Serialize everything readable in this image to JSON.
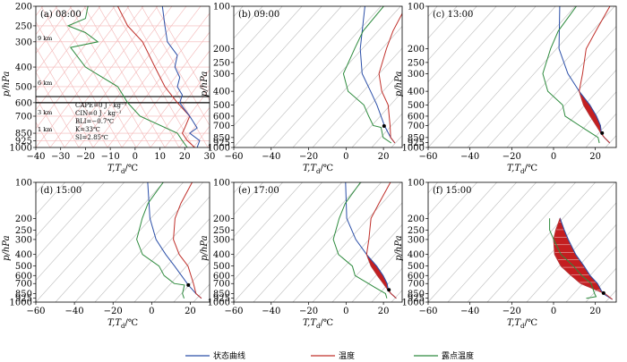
{
  "colors": {
    "parcel": "#2b4fa8",
    "temperature": "#c0302b",
    "dewpoint": "#2e8b3e",
    "cape": "#c41e20",
    "isotherm": "#bdbdbd",
    "skew_grid": "#f3b6b6"
  },
  "legend": [
    {
      "key": "parcel",
      "label": "状态曲线"
    },
    {
      "key": "temperature",
      "label": "温度"
    },
    {
      "key": "dewpoint",
      "label": "露点温度"
    }
  ],
  "chart_data": [
    {
      "type": "line",
      "panel": "(a)",
      "time": "08:00",
      "ylabel": "p/hPa",
      "xlabel_main": "T,T",
      "xlabel_sub": "d",
      "xlabel_unit": "/℃",
      "xlim": [
        -40,
        30
      ],
      "ylim": [
        1000,
        200
      ],
      "xticks": [
        -40,
        -30,
        -20,
        -10,
        0,
        10,
        20,
        30
      ],
      "yticks": [
        200,
        250,
        300,
        400,
        500,
        600,
        700,
        850,
        925,
        1000
      ],
      "height_labels": [
        {
          "p": 300,
          "text": "9 km"
        },
        {
          "p": 500,
          "text": "6 km"
        },
        {
          "p": 700,
          "text": "3 km"
        },
        {
          "p": 850,
          "text": "1 km"
        }
      ],
      "indices": [
        "CAPE=0 J · kg⁻¹",
        "CIN=0 J · kg⁻¹",
        "BLI=−0.7℃",
        "K=33℃",
        "SI=2.85℃"
      ],
      "series": [
        {
          "name": "温度",
          "key": "temperature",
          "points": [
            [
              1000,
              24
            ],
            [
              925,
              21
            ],
            [
              850,
              19
            ],
            [
              800,
              20
            ],
            [
              700,
              22
            ],
            [
              600,
              17
            ],
            [
              500,
              12
            ],
            [
              400,
              8
            ],
            [
              300,
              3
            ],
            [
              250,
              -3
            ],
            [
              200,
              -7
            ]
          ]
        },
        {
          "name": "露点温度",
          "key": "dewpoint",
          "points": [
            [
              1000,
              21
            ],
            [
              925,
              19
            ],
            [
              850,
              17
            ],
            [
              700,
              2
            ],
            [
              600,
              -3
            ],
            [
              500,
              -7
            ],
            [
              400,
              -20
            ],
            [
              320,
              -26
            ],
            [
              300,
              -15
            ],
            [
              270,
              -20
            ],
            [
              250,
              -27
            ],
            [
              230,
              -20
            ],
            [
              200,
              -19
            ]
          ]
        },
        {
          "name": "wind_profile",
          "key": "parcel",
          "points": [
            [
              1000,
              25
            ],
            [
              925,
              26
            ],
            [
              850,
              22
            ],
            [
              800,
              25
            ],
            [
              700,
              22
            ],
            [
              650,
              20
            ],
            [
              600,
              18
            ],
            [
              550,
              19
            ],
            [
              500,
              17
            ],
            [
              450,
              18
            ],
            [
              400,
              16
            ],
            [
              350,
              17
            ],
            [
              300,
              13
            ],
            [
              250,
              12
            ],
            [
              200,
              11
            ]
          ]
        }
      ]
    },
    {
      "type": "line",
      "panel": "(b)",
      "time": "09:00",
      "ylabel": "p/hPa",
      "xlabel_main": "T,T",
      "xlabel_sub": "d",
      "xlabel_unit": "/℃",
      "xlim": [
        -60,
        30
      ],
      "ylim": [
        1000,
        100
      ],
      "xticks": [
        -60,
        -40,
        -20,
        0,
        20
      ],
      "yticks": [
        100,
        200,
        250,
        300,
        400,
        500,
        600,
        700,
        850,
        925,
        1000
      ],
      "lcl": {
        "p": 705,
        "t": 10
      },
      "series": [
        {
          "name": "状态曲线",
          "key": "parcel",
          "points": [
            [
              930,
              24
            ],
            [
              850,
              19
            ],
            [
              700,
              10
            ],
            [
              500,
              -4
            ],
            [
              400,
              -14
            ],
            [
              300,
              -27
            ],
            [
              200,
              -40
            ],
            [
              100,
              -58
            ]
          ]
        },
        {
          "name": "温度",
          "key": "temperature",
          "points": [
            [
              930,
              24
            ],
            [
              850,
              19
            ],
            [
              700,
              13
            ],
            [
              500,
              2
            ],
            [
              400,
              -8
            ],
            [
              300,
              -18
            ],
            [
              200,
              -26
            ],
            [
              150,
              -31
            ],
            [
              100,
              -36
            ]
          ]
        },
        {
          "name": "露点温度",
          "key": "dewpoint",
          "points": [
            [
              930,
              22
            ],
            [
              850,
              15
            ],
            [
              720,
              9
            ],
            [
              700,
              4
            ],
            [
              600,
              -3
            ],
            [
              500,
              -11
            ],
            [
              400,
              -26
            ],
            [
              300,
              -37
            ],
            [
              200,
              -43
            ],
            [
              150,
              -47
            ],
            [
              100,
              -48
            ]
          ]
        }
      ]
    },
    {
      "type": "line",
      "panel": "(c)",
      "time": "13:00",
      "ylabel": "p/hPa",
      "xlabel_main": "T,T",
      "xlabel_sub": "d",
      "xlabel_unit": "/℃",
      "xlim": [
        -60,
        30
      ],
      "ylim": [
        1000,
        100
      ],
      "xticks": [
        -60,
        -40,
        -20,
        0,
        20
      ],
      "yticks": [
        100,
        200,
        250,
        300,
        400,
        500,
        600,
        700,
        850,
        925,
        1000
      ],
      "lcl": {
        "p": 790,
        "t": 17
      },
      "cape": {
        "p_top": 420,
        "p_bottom": 800
      },
      "series": [
        {
          "name": "状态曲线",
          "key": "parcel",
          "points": [
            [
              930,
              25
            ],
            [
              850,
              20
            ],
            [
              800,
              17
            ],
            [
              700,
              13
            ],
            [
              600,
              7
            ],
            [
              500,
              -1
            ],
            [
              400,
              -12
            ],
            [
              300,
              -25
            ],
            [
              200,
              -40
            ],
            [
              100,
              -58
            ]
          ]
        },
        {
          "name": "温度",
          "key": "temperature",
          "points": [
            [
              930,
              25
            ],
            [
              850,
              20
            ],
            [
              800,
              17
            ],
            [
              700,
              11
            ],
            [
              600,
              4
            ],
            [
              500,
              -4
            ],
            [
              400,
              -12
            ],
            [
              300,
              -18
            ],
            [
              200,
              -27
            ],
            [
              150,
              -30
            ],
            [
              100,
              -34
            ]
          ]
        },
        {
          "name": "露点温度",
          "key": "dewpoint",
          "points": [
            [
              930,
              20
            ],
            [
              850,
              17
            ],
            [
              750,
              8
            ],
            [
              700,
              3
            ],
            [
              600,
              -8
            ],
            [
              500,
              -14
            ],
            [
              400,
              -27
            ],
            [
              300,
              -37
            ],
            [
              200,
              -44
            ],
            [
              150,
              -48
            ],
            [
              100,
              -50
            ]
          ]
        }
      ]
    },
    {
      "type": "line",
      "panel": "(d)",
      "time": "15:00",
      "ylabel": "p/hPa",
      "xlabel_main": "T,T",
      "xlabel_sub": "d",
      "xlabel_unit": "/℃",
      "xlim": [
        -60,
        30
      ],
      "ylim": [
        1000,
        100
      ],
      "xticks": [
        -60,
        -40,
        -20,
        0,
        20
      ],
      "yticks": [
        100,
        200,
        250,
        300,
        400,
        500,
        600,
        700,
        850,
        925,
        1000
      ],
      "lcl": {
        "p": 720,
        "t": 11
      },
      "series": [
        {
          "name": "状态曲线",
          "key": "parcel",
          "points": [
            [
              930,
              24
            ],
            [
              850,
              19
            ],
            [
              720,
              11
            ],
            [
              600,
              3
            ],
            [
              500,
              -5
            ],
            [
              400,
              -15
            ],
            [
              300,
              -27
            ],
            [
              200,
              -40
            ],
            [
              100,
              -58
            ]
          ]
        },
        {
          "name": "温度",
          "key": "temperature",
          "points": [
            [
              930,
              24
            ],
            [
              850,
              19
            ],
            [
              700,
              13
            ],
            [
              500,
              2
            ],
            [
              400,
              -8
            ],
            [
              300,
              -18
            ],
            [
              200,
              -27
            ],
            [
              150,
              -31
            ],
            [
              100,
              -35
            ]
          ]
        },
        {
          "name": "露点温度",
          "key": "dewpoint",
          "points": [
            [
              930,
              15
            ],
            [
              850,
              12
            ],
            [
              720,
              9
            ],
            [
              700,
              3
            ],
            [
              600,
              -6
            ],
            [
              500,
              -13
            ],
            [
              400,
              -27
            ],
            [
              300,
              -37
            ],
            [
              200,
              -44
            ],
            [
              150,
              -48
            ],
            [
              100,
              -50
            ]
          ]
        }
      ]
    },
    {
      "type": "line",
      "panel": "(e)",
      "time": "17:00",
      "ylabel": "p/hPa",
      "xlabel_main": "T,T",
      "xlabel_sub": "d",
      "xlabel_unit": "/℃",
      "xlim": [
        -60,
        30
      ],
      "ylim": [
        1000,
        100
      ],
      "xticks": [
        -60,
        -40,
        -20,
        0,
        20
      ],
      "yticks": [
        100,
        200,
        250,
        300,
        400,
        500,
        600,
        700,
        850,
        925,
        1000
      ],
      "lcl": {
        "p": 790,
        "t": 17
      },
      "cape": {
        "p_top": 420,
        "p_bottom": 800
      },
      "series": [
        {
          "name": "状态曲线",
          "key": "parcel",
          "points": [
            [
              930,
              25
            ],
            [
              850,
              20
            ],
            [
              800,
              17
            ],
            [
              700,
              13
            ],
            [
              600,
              7
            ],
            [
              500,
              -1
            ],
            [
              400,
              -12
            ],
            [
              300,
              -25
            ],
            [
              200,
              -40
            ],
            [
              100,
              -58
            ]
          ]
        },
        {
          "name": "温度",
          "key": "temperature",
          "points": [
            [
              930,
              25
            ],
            [
              850,
              20
            ],
            [
              800,
              17
            ],
            [
              700,
              11
            ],
            [
              600,
              4
            ],
            [
              500,
              -4
            ],
            [
              400,
              -12
            ],
            [
              300,
              -18
            ],
            [
              200,
              -27
            ],
            [
              150,
              -30
            ],
            [
              100,
              -34
            ]
          ]
        },
        {
          "name": "露点温度",
          "key": "dewpoint",
          "points": [
            [
              930,
              20
            ],
            [
              850,
              17
            ],
            [
              750,
              8
            ],
            [
              700,
              3
            ],
            [
              600,
              -8
            ],
            [
              500,
              -14
            ],
            [
              400,
              -27
            ],
            [
              300,
              -37
            ],
            [
              200,
              -44
            ],
            [
              150,
              -48
            ],
            [
              100,
              -50
            ]
          ]
        }
      ]
    },
    {
      "type": "line",
      "panel": "(f)",
      "time": "15:00",
      "ylabel": "p/hPa",
      "xlabel_main": "T,T",
      "xlabel_sub": "d",
      "xlabel_unit": "/℃",
      "xlim": [
        -60,
        30
      ],
      "ylim": [
        1000,
        100
      ],
      "xticks": [
        -60,
        -40,
        -20,
        0,
        20
      ],
      "yticks": [
        100,
        200,
        250,
        300,
        400,
        500,
        600,
        700,
        850,
        925,
        1000
      ],
      "lcl": {
        "p": 840,
        "t": 20
      },
      "cape": {
        "p_top": 200,
        "p_bottom": 850
      },
      "series": [
        {
          "name": "状态曲线",
          "key": "parcel",
          "points": [
            [
              950,
              27
            ],
            [
              850,
              20
            ],
            [
              700,
              13
            ],
            [
              600,
              6
            ],
            [
              500,
              -1
            ],
            [
              400,
              -10
            ],
            [
              300,
              -20
            ],
            [
              250,
              -26
            ],
            [
              200,
              -33
            ]
          ]
        },
        {
          "name": "温度",
          "key": "temperature",
          "points": [
            [
              950,
              27
            ],
            [
              850,
              21
            ],
            [
              700,
              5
            ],
            [
              600,
              -3
            ],
            [
              500,
              -12
            ],
            [
              400,
              -20
            ],
            [
              300,
              -27
            ],
            [
              250,
              -30
            ],
            [
              200,
              -33
            ]
          ]
        },
        {
          "name": "露点温度",
          "key": "dewpoint",
          "points": [
            [
              930,
              14
            ],
            [
              900,
              18
            ],
            [
              850,
              16
            ],
            [
              700,
              10
            ],
            [
              600,
              2
            ],
            [
              500,
              -6
            ],
            [
              400,
              -17
            ],
            [
              300,
              -27
            ],
            [
              250,
              -33
            ],
            [
              200,
              -38
            ]
          ]
        }
      ]
    }
  ]
}
